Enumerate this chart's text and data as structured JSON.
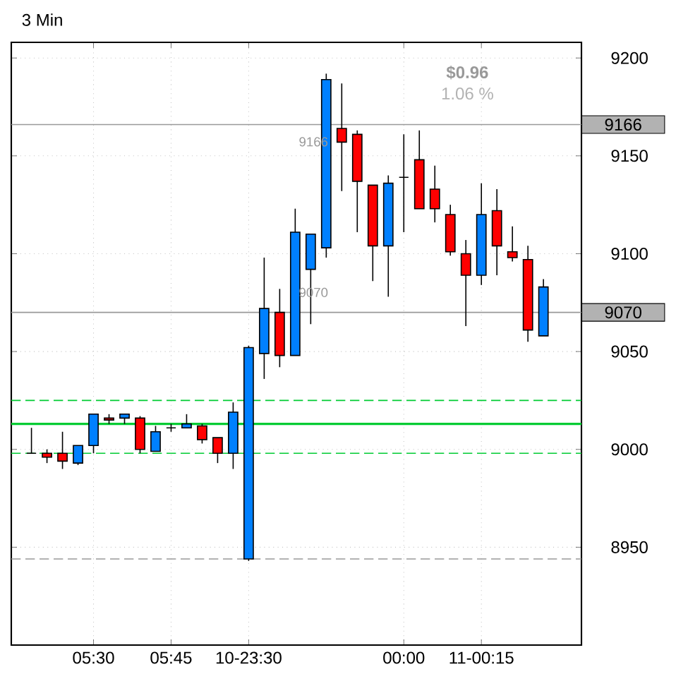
{
  "chart_data": {
    "type": "candlestick",
    "title": "3 Min",
    "categories": [
      null,
      null,
      null,
      null,
      "05:30",
      null,
      null,
      null,
      null,
      "05:45",
      null,
      null,
      null,
      null,
      "10-23:30",
      null,
      null,
      null,
      null,
      null,
      null,
      null,
      null,
      null,
      "00:00",
      null,
      null,
      null,
      null,
      "11-00:15",
      null,
      null,
      null,
      null
    ],
    "ohlc": [
      [
        8998,
        9011,
        8998,
        8998
      ],
      [
        8998,
        9000,
        8993,
        8996
      ],
      [
        8998,
        9009,
        8990,
        8994
      ],
      [
        8993,
        9002,
        8992,
        9002
      ],
      [
        9002,
        9018,
        8998,
        9018
      ],
      [
        9016,
        9018,
        9013,
        9015
      ],
      [
        9016,
        9018,
        9013,
        9018
      ],
      [
        9016,
        9017,
        8998,
        9000
      ],
      [
        8999,
        9012,
        8999,
        9009
      ],
      [
        9011,
        9013,
        9009,
        9011
      ],
      [
        9011,
        9018,
        9011,
        9013
      ],
      [
        9012,
        9013,
        9003,
        9005
      ],
      [
        9006,
        9006,
        8993,
        8998
      ],
      [
        8998,
        9024,
        8990,
        9019
      ],
      [
        8944,
        9053,
        8943,
        9052
      ],
      [
        9049,
        9098,
        9036,
        9072
      ],
      [
        9070,
        9082,
        9042,
        9048
      ],
      [
        9048,
        9123,
        9048,
        9111
      ],
      [
        9092,
        9110,
        9064,
        9110
      ],
      [
        9103,
        9192,
        9098,
        9189
      ],
      [
        9164,
        9187,
        9132,
        9157
      ],
      [
        9161,
        9163,
        9111,
        9137
      ],
      [
        9135,
        9135,
        9086,
        9104
      ],
      [
        9104,
        9140,
        9078,
        9136
      ],
      [
        9139,
        9161,
        9111,
        9139
      ],
      [
        9148,
        9163,
        9123,
        9123
      ],
      [
        9133,
        9145,
        9116,
        9123
      ],
      [
        9120,
        9125,
        9099,
        9101
      ],
      [
        9100,
        9107,
        9063,
        9089
      ],
      [
        9089,
        9136,
        9084,
        9120
      ],
      [
        9122,
        9133,
        9089,
        9104
      ],
      [
        9101,
        9114,
        9096,
        9098
      ],
      [
        9097,
        9104,
        9055,
        9061
      ],
      [
        9058,
        9087,
        9058,
        9083
      ]
    ],
    "colors": [
      "#000000",
      "#ff0000",
      "#ff0000",
      "#0080ff",
      "#0080ff",
      "#ff0000",
      "#0080ff",
      "#ff0000",
      "#0080ff",
      "#000000",
      "#0080ff",
      "#ff0000",
      "#ff0000",
      "#0080ff",
      "#0080ff",
      "#0080ff",
      "#ff0000",
      "#0080ff",
      "#0080ff",
      "#0080ff",
      "#ff0000",
      "#ff0000",
      "#ff0000",
      "#0080ff",
      "#000000",
      "#ff0000",
      "#ff0000",
      "#ff0000",
      "#ff0000",
      "#0080ff",
      "#ff0000",
      "#ff0000",
      "#ff0000",
      "#0080ff"
    ],
    "ylim": [
      8900,
      9208
    ],
    "yticks": [
      8950,
      9000,
      9050,
      9100,
      9150,
      9200
    ],
    "grid": true,
    "ref_lines": [
      {
        "axis": "y",
        "value": 9025,
        "color": "#00cc33",
        "line_style": "dashed"
      },
      {
        "axis": "y",
        "value": 9013,
        "color": "#00cc33",
        "line_style": "solid"
      },
      {
        "axis": "y",
        "value": 8998,
        "color": "#00cc33",
        "line_style": "dashed"
      },
      {
        "axis": "y",
        "value": 8944,
        "color": "#999999",
        "line_style": "dashed"
      },
      {
        "axis": "y",
        "value": 9166,
        "label": "9166",
        "color": "#999999",
        "line_style": "solid"
      },
      {
        "axis": "y",
        "value": 9070,
        "label": "9070",
        "color": "#999999",
        "line_style": "solid"
      }
    ],
    "annotations": [
      "$0.96",
      "1.06 %",
      "9166",
      "9070"
    ]
  }
}
